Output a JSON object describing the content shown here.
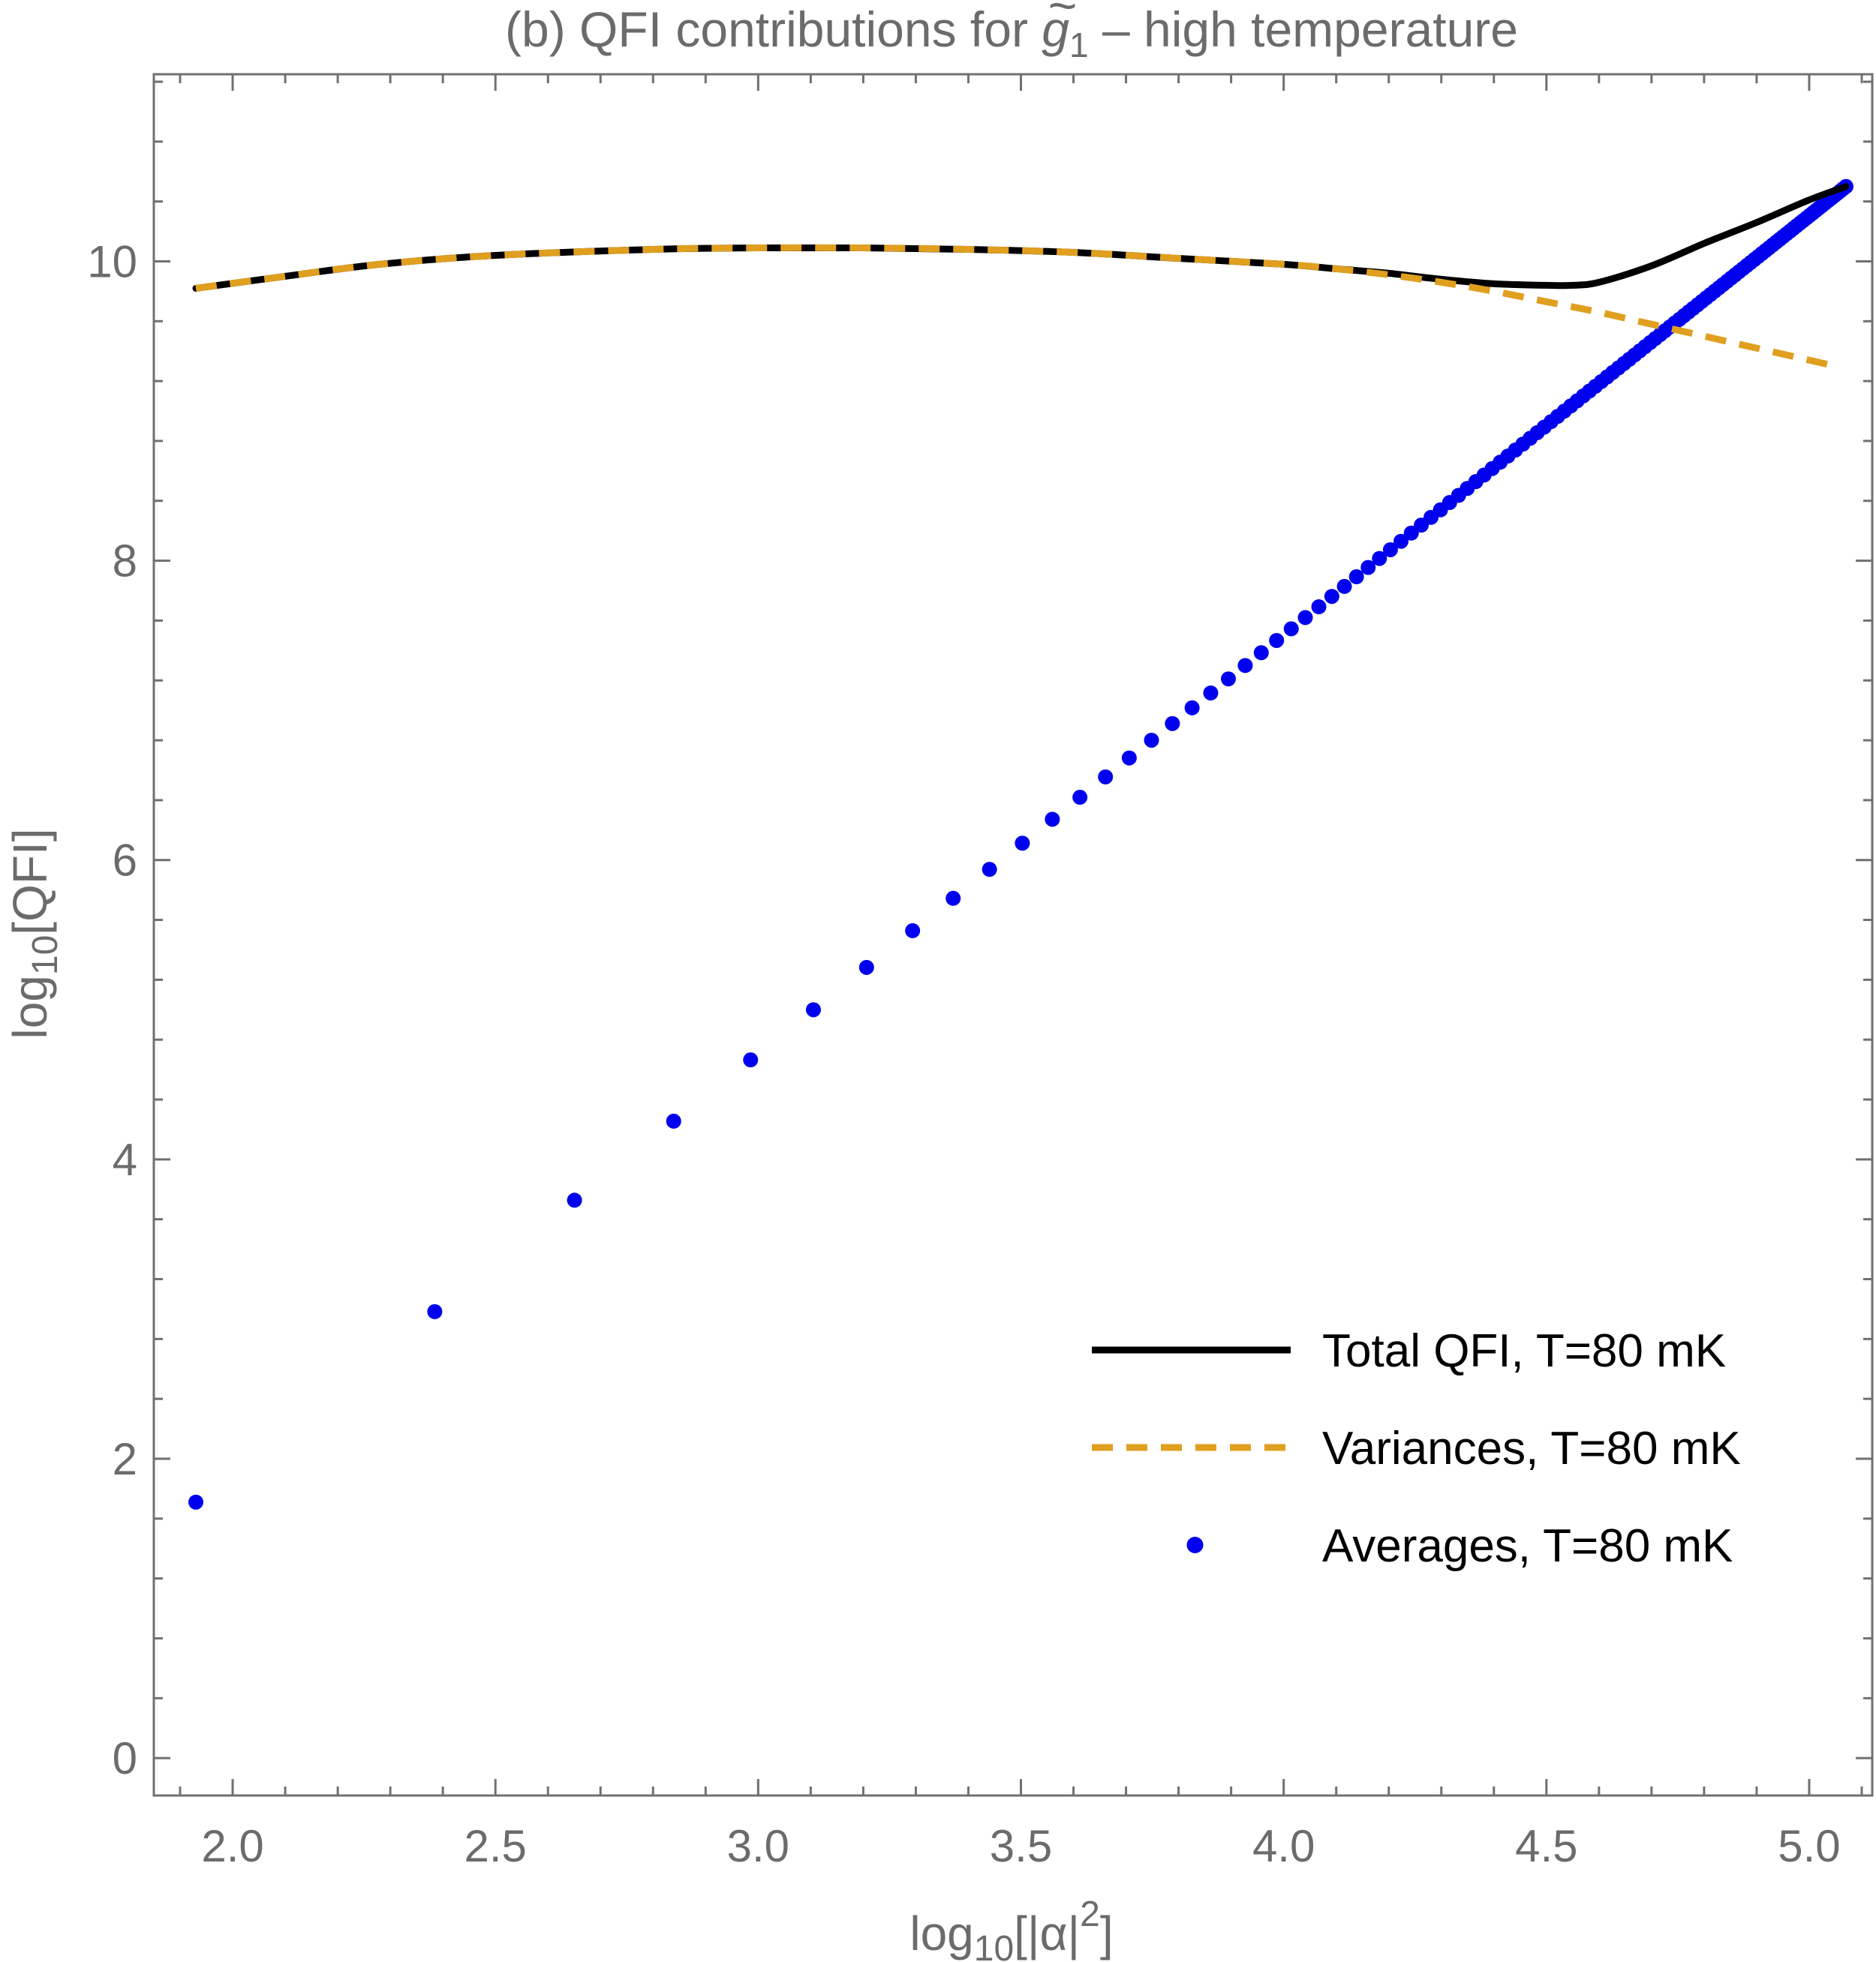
{
  "chart_data": {
    "type": "line",
    "title": {
      "prefix": "(b) QFI contributions for ",
      "symbol": "g",
      "symbol_accent": "~",
      "symbol_subscript": "1",
      "suffix": " – high temperature"
    },
    "xlabel": {
      "prefix": "log",
      "subscript": "10",
      "body": "[|α|",
      "superscript": "2",
      "close": "]"
    },
    "ylabel": {
      "prefix": "log",
      "subscript": "10",
      "body": "[QFI]"
    },
    "xlim": [
      1.85,
      5.12
    ],
    "ylim": [
      -0.25,
      11.25
    ],
    "xticks": [
      {
        "value": 2.0,
        "label": "2.0"
      },
      {
        "value": 2.5,
        "label": "2.5"
      },
      {
        "value": 3.0,
        "label": "3.0"
      },
      {
        "value": 3.5,
        "label": "3.5"
      },
      {
        "value": 4.0,
        "label": "4.0"
      },
      {
        "value": 4.5,
        "label": "4.5"
      },
      {
        "value": 5.0,
        "label": "5.0"
      }
    ],
    "yticks": [
      {
        "value": 0,
        "label": "0"
      },
      {
        "value": 2,
        "label": "2"
      },
      {
        "value": 4,
        "label": "4"
      },
      {
        "value": 6,
        "label": "6"
      },
      {
        "value": 8,
        "label": "8"
      },
      {
        "value": 10,
        "label": "10"
      }
    ],
    "x_minor_step": 0.1,
    "y_minor_step": 0.4,
    "grid": false,
    "legend_position": "bottom-right",
    "series": [
      {
        "name": "Total QFI, T=80 mK",
        "style": "solid",
        "color": "#000000",
        "x": [
          1.93,
          2.1,
          2.28,
          2.5,
          2.8,
          3.0,
          3.2,
          3.4,
          3.6,
          3.8,
          4.0,
          4.1,
          4.2,
          4.3,
          4.4,
          4.5,
          4.55,
          4.6,
          4.7,
          4.8,
          4.9,
          5.0,
          5.07
        ],
        "y": [
          9.82,
          9.9,
          9.98,
          10.04,
          10.08,
          10.09,
          10.09,
          10.08,
          10.06,
          10.02,
          9.98,
          9.95,
          9.92,
          9.88,
          9.85,
          9.84,
          9.84,
          9.86,
          9.97,
          10.12,
          10.26,
          10.41,
          10.5
        ]
      },
      {
        "name": "Variances, T=80 mK",
        "style": "dashed",
        "color": "#E09F1F",
        "x": [
          1.93,
          2.1,
          2.28,
          2.5,
          2.8,
          3.0,
          3.2,
          3.4,
          3.6,
          3.8,
          4.0,
          4.1,
          4.2,
          4.3,
          4.4,
          4.5,
          4.6,
          4.7,
          4.8,
          4.9,
          5.0,
          5.05
        ],
        "y": [
          9.82,
          9.9,
          9.98,
          10.04,
          10.08,
          10.09,
          10.09,
          10.08,
          10.06,
          10.02,
          9.98,
          9.95,
          9.91,
          9.86,
          9.8,
          9.73,
          9.66,
          9.58,
          9.5,
          9.42,
          9.34,
          9.3
        ]
      },
      {
        "name": "Averages, T=80 mK",
        "style": "points",
        "color": "#0000EE",
        "x_start": 1.93,
        "x_end": 5.07,
        "y_start": 1.71,
        "y_end": 10.5,
        "point_count": 120,
        "point_rule": "log10(k) spacing in x, linear in y"
      }
    ]
  }
}
